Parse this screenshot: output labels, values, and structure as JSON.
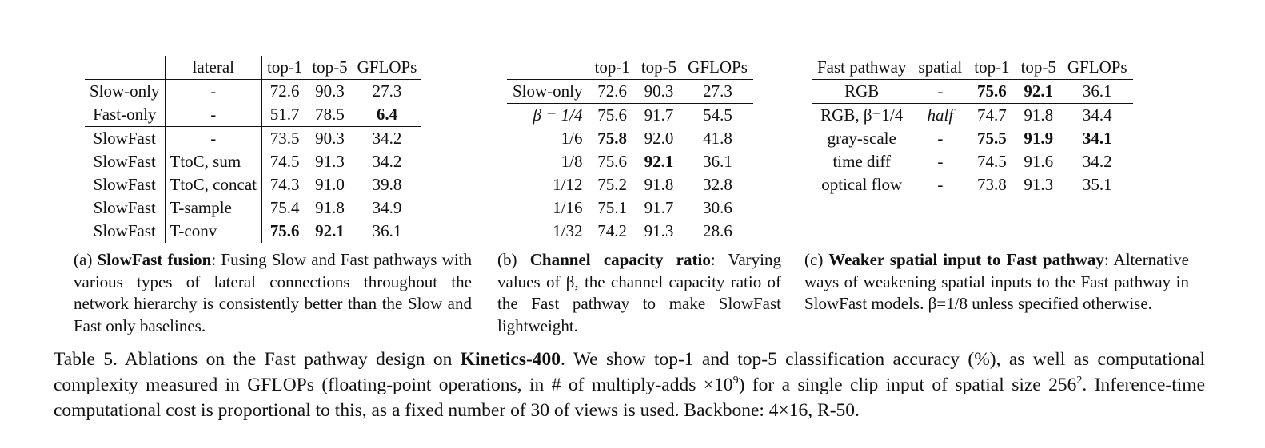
{
  "table_a": {
    "headers": [
      "",
      "lateral",
      "top-1",
      "top-5",
      "GFLOPs"
    ],
    "rows": [
      {
        "model": "Slow-only",
        "lateral": "-",
        "top1": "72.6",
        "top5": "90.3",
        "gflops": "27.3"
      },
      {
        "model": "Fast-only",
        "lateral": "-",
        "top1": "51.7",
        "top5": "78.5",
        "gflops": "6.4"
      },
      {
        "model": "SlowFast",
        "lateral": "-",
        "top1": "73.5",
        "top5": "90.3",
        "gflops": "34.2"
      },
      {
        "model": "SlowFast",
        "lateral": "TtoC, sum",
        "top1": "74.5",
        "top5": "91.3",
        "gflops": "34.2"
      },
      {
        "model": "SlowFast",
        "lateral": "TtoC, concat",
        "top1": "74.3",
        "top5": "91.0",
        "gflops": "39.8"
      },
      {
        "model": "SlowFast",
        "lateral": "T-sample",
        "top1": "75.4",
        "top5": "91.8",
        "gflops": "34.9"
      },
      {
        "model": "SlowFast",
        "lateral": "T-conv",
        "top1": "75.6",
        "top5": "92.1",
        "gflops": "36.1"
      }
    ],
    "caption_label": "(a)",
    "caption_title": "SlowFast fusion",
    "caption_text": ": Fusing Slow and Fast pathways with various types of lateral connections throughout the network hierarchy is consistently better than the Slow and Fast only baselines."
  },
  "table_b": {
    "headers": [
      "",
      "top-1",
      "top-5",
      "GFLOPs"
    ],
    "rows": [
      {
        "setting": "Slow-only",
        "top1": "72.6",
        "top5": "90.3",
        "gflops": "27.3"
      },
      {
        "setting": "β = 1/4",
        "top1": "75.6",
        "top5": "91.7",
        "gflops": "54.5"
      },
      {
        "setting": "1/6",
        "top1": "75.8",
        "top5": "92.0",
        "gflops": "41.8"
      },
      {
        "setting": "1/8",
        "top1": "75.6",
        "top5": "92.1",
        "gflops": "36.1"
      },
      {
        "setting": "1/12",
        "top1": "75.2",
        "top5": "91.8",
        "gflops": "32.8"
      },
      {
        "setting": "1/16",
        "top1": "75.1",
        "top5": "91.7",
        "gflops": "30.6"
      },
      {
        "setting": "1/32",
        "top1": "74.2",
        "top5": "91.3",
        "gflops": "28.6"
      }
    ],
    "caption_label": "(b)",
    "caption_title": "Channel capacity ratio",
    "caption_text": ": Varying values of β, the channel capacity ratio of the Fast pathway to make SlowFast lightweight."
  },
  "table_c": {
    "headers": [
      "Fast pathway",
      "spatial",
      "top-1",
      "top-5",
      "GFLOPs"
    ],
    "rows": [
      {
        "input": "RGB",
        "spatial": "-",
        "top1": "75.6",
        "top5": "92.1",
        "gflops": "36.1"
      },
      {
        "input": "RGB, β=1/4",
        "spatial": "half",
        "top1": "74.7",
        "top5": "91.8",
        "gflops": "34.4"
      },
      {
        "input": "gray-scale",
        "spatial": "-",
        "top1": "75.5",
        "top5": "91.9",
        "gflops": "34.1"
      },
      {
        "input": "time diff",
        "spatial": "-",
        "top1": "74.5",
        "top5": "91.6",
        "gflops": "34.2"
      },
      {
        "input": "optical flow",
        "spatial": "-",
        "top1": "73.8",
        "top5": "91.3",
        "gflops": "35.1"
      }
    ],
    "caption_label": "(c)",
    "caption_title": "Weaker spatial input to Fast pathway",
    "caption_text": ": Alternative ways of weakening spatial inputs to the Fast pathway in SlowFast models. β=1/8 unless specified otherwise."
  },
  "main_caption": {
    "prefix": "Table 5. Ablations on the Fast pathway design on ",
    "dataset": "Kinetics-400",
    "part1": ". We show top-1 and top-5 classification accuracy (%), as well as computational complexity measured in GFLOPs (floating-point operations, in # of multiply-adds ×10",
    "exp1": "9",
    "part2": ") for a single clip input of spatial size 256",
    "exp2": "2",
    "part3": ". Inference-time computational cost is proportional to this, as a fixed number of 30 of views is used. Backbone: 4×16, R-50."
  }
}
